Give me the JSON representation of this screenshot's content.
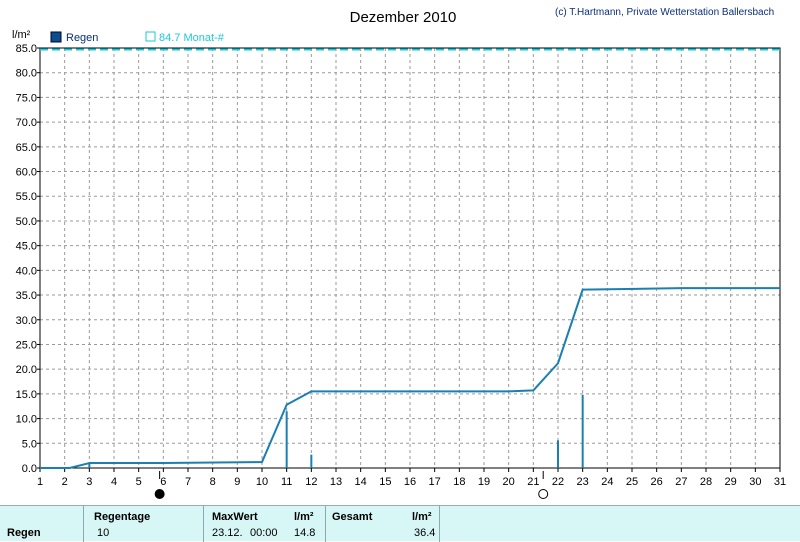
{
  "header": {
    "title": "Dezember 2010",
    "copyright": "(c) T.Hartmann, Private Wetterstation Ballersbach"
  },
  "colors": {
    "rain_line": "#1b7fb2",
    "rain_legend": "#0b4f8a",
    "average_line": "#1ec9d8",
    "grid": "#9a9a9a",
    "stats_bg": "#d6f7f5"
  },
  "icons": {
    "new_moon": "new-moon-icon",
    "full_moon": "full-moon-icon"
  },
  "moon_phases": [
    {
      "day": 5.85,
      "phase": "new"
    },
    {
      "day": 21.4,
      "phase": "full"
    }
  ],
  "chart_data": {
    "type": "line",
    "ylabel": "l/m²",
    "ylim": [
      0,
      85
    ],
    "y_ticks": [
      "0.0",
      "5.0",
      "10.0",
      "15.0",
      "20.0",
      "25.0",
      "30.0",
      "35.0",
      "40.0",
      "45.0",
      "50.0",
      "55.0",
      "60.0",
      "65.0",
      "70.0",
      "75.0",
      "80.0",
      "85.0"
    ],
    "xlim": [
      1,
      31
    ],
    "x_ticks": [
      "1",
      "2",
      "3",
      "4",
      "5",
      "6",
      "7",
      "8",
      "9",
      "10",
      "11",
      "12",
      "13",
      "14",
      "15",
      "16",
      "17",
      "18",
      "19",
      "20",
      "21",
      "22",
      "23",
      "24",
      "25",
      "26",
      "27",
      "28",
      "29",
      "30",
      "31"
    ],
    "grid": true,
    "legend": [
      {
        "label": "Regen",
        "style": "filled-square"
      },
      {
        "label": "84.7 Monat-#",
        "style": "open-square"
      }
    ],
    "cumulative": {
      "name": "Regen",
      "x": [
        1,
        2.2,
        3,
        6,
        10,
        11,
        12,
        20,
        21,
        22,
        23,
        27,
        31
      ],
      "y": [
        0,
        0,
        1,
        1,
        1.2,
        12.8,
        15.5,
        15.5,
        15.7,
        21.2,
        36.1,
        36.4,
        36.4
      ]
    },
    "daily_bars": {
      "x": [
        2.2,
        3,
        11,
        12,
        21,
        22,
        23
      ],
      "y": [
        0.2,
        0.8,
        11.5,
        2.7,
        0.2,
        5.6,
        14.8
      ]
    },
    "average": {
      "name": "84.7 Monat-#",
      "value": 84.7
    }
  },
  "stats": {
    "row_label": "Regen",
    "regentage_label": "Regentage",
    "regentage_value": "10",
    "maxwert_label": "MaxWert",
    "maxwert_unit": "l/m²",
    "maxwert_date": "23.12.",
    "maxwert_time": "00:00",
    "maxwert_value": "14.8",
    "gesamt_label": "Gesamt",
    "gesamt_unit": "l/m²",
    "gesamt_value": "36.4"
  }
}
